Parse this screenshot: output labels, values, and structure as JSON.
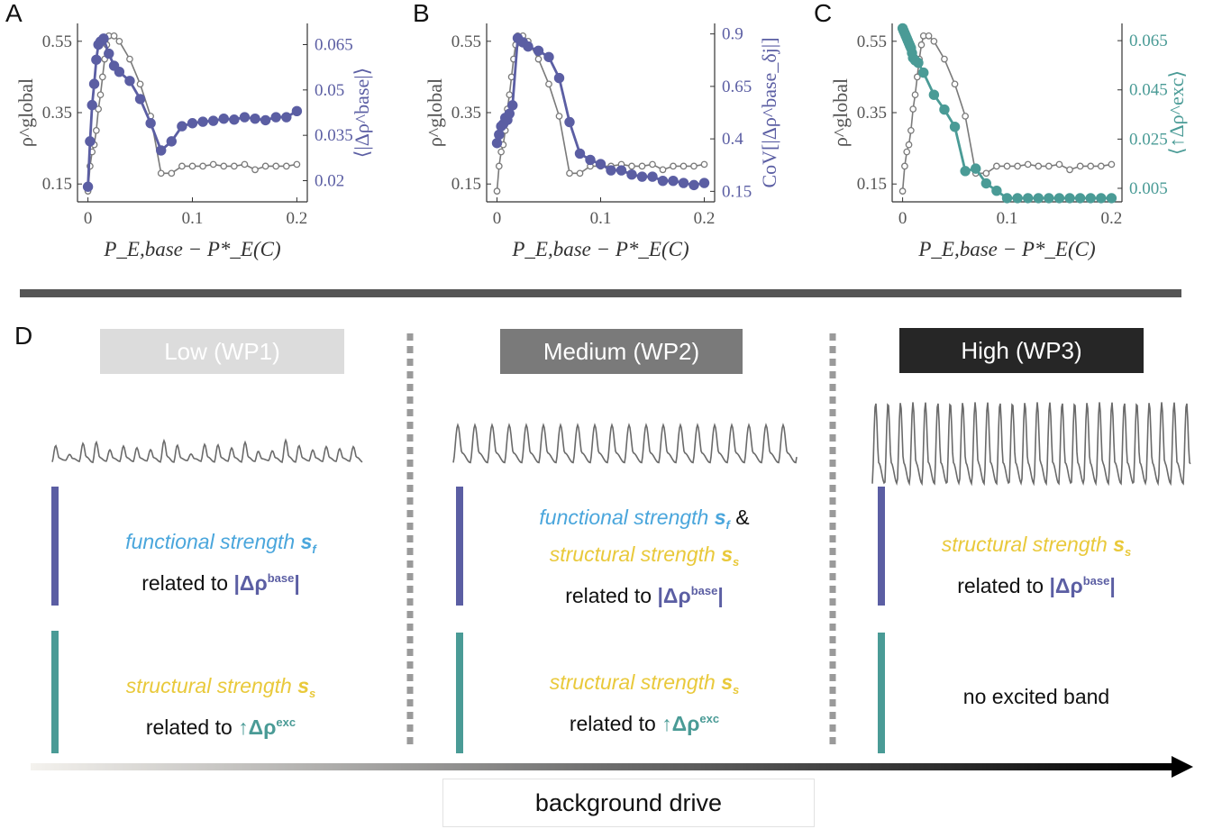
{
  "colors": {
    "gray": "#7a7a7a",
    "purple": "#5b5ea3",
    "teal": "#4a9b96",
    "blue": "#4aa6dc",
    "yellow": "#e9c93b",
    "dark": "#222222"
  },
  "panels": {
    "A": {
      "letter": "A"
    },
    "B": {
      "letter": "B"
    },
    "C": {
      "letter": "C"
    },
    "D": {
      "letter": "D"
    }
  },
  "chart_data": [
    {
      "type": "line",
      "panel": "A",
      "xlabel": "P_E,base − P*_E(C)",
      "ylabel_left": "ρ^global",
      "ylabel_right": "⟨|Δρ^base|⟩",
      "xlim": [
        -0.01,
        0.21
      ],
      "xticks": [
        "0",
        "0.1",
        "0.2"
      ],
      "ylim_left": [
        0.1,
        0.6
      ],
      "yticks_left": [
        "0.15",
        "0.35",
        "0.55"
      ],
      "ylim_right": [
        0.013,
        0.072
      ],
      "yticks_right": [
        "0.02",
        "0.035",
        "0.05",
        "0.065"
      ],
      "series": [
        {
          "axis": "left",
          "x": [
            0,
            0.002,
            0.004,
            0.006,
            0.008,
            0.01,
            0.012,
            0.014,
            0.016,
            0.018,
            0.02,
            0.025,
            0.03,
            0.04,
            0.05,
            0.06,
            0.07,
            0.08,
            0.09,
            0.1,
            0.11,
            0.12,
            0.13,
            0.14,
            0.15,
            0.16,
            0.17,
            0.18,
            0.19,
            0.2
          ],
          "values": [
            0.13,
            0.2,
            0.24,
            0.26,
            0.3,
            0.36,
            0.4,
            0.45,
            0.5,
            0.54,
            0.565,
            0.565,
            0.55,
            0.5,
            0.43,
            0.34,
            0.18,
            0.18,
            0.2,
            0.2,
            0.2,
            0.205,
            0.2,
            0.2,
            0.205,
            0.19,
            0.2,
            0.2,
            0.2,
            0.205
          ]
        },
        {
          "axis": "right",
          "x": [
            0,
            0.002,
            0.004,
            0.006,
            0.008,
            0.01,
            0.012,
            0.015,
            0.02,
            0.025,
            0.03,
            0.04,
            0.05,
            0.06,
            0.07,
            0.08,
            0.09,
            0.1,
            0.11,
            0.12,
            0.13,
            0.14,
            0.15,
            0.16,
            0.17,
            0.18,
            0.19,
            0.2
          ],
          "values": [
            0.018,
            0.033,
            0.045,
            0.052,
            0.06,
            0.065,
            0.066,
            0.067,
            0.062,
            0.058,
            0.056,
            0.053,
            0.047,
            0.039,
            0.03,
            0.033,
            0.038,
            0.039,
            0.0395,
            0.0398,
            0.0405,
            0.0402,
            0.041,
            0.0405,
            0.04,
            0.041,
            0.041,
            0.043
          ]
        }
      ]
    },
    {
      "type": "line",
      "panel": "B",
      "xlabel": "P_E,base − P*_E(C)",
      "ylabel_left": "ρ^global",
      "ylabel_right": "CoV[|Δρ^base_δj|]",
      "xlim": [
        -0.01,
        0.21
      ],
      "xticks": [
        "0",
        "0.1",
        "0.2"
      ],
      "ylim_left": [
        0.1,
        0.6
      ],
      "yticks_left": [
        "0.15",
        "0.35",
        "0.55"
      ],
      "ylim_right": [
        0.1,
        0.95
      ],
      "yticks_right": [
        "0.15",
        "0.4",
        "0.65",
        "0.9"
      ],
      "series": [
        {
          "axis": "left",
          "x": [
            0,
            0.002,
            0.004,
            0.006,
            0.008,
            0.01,
            0.012,
            0.014,
            0.016,
            0.018,
            0.02,
            0.025,
            0.03,
            0.04,
            0.05,
            0.06,
            0.07,
            0.08,
            0.09,
            0.1,
            0.11,
            0.12,
            0.13,
            0.14,
            0.15,
            0.16,
            0.17,
            0.18,
            0.19,
            0.2
          ],
          "values": [
            0.13,
            0.2,
            0.24,
            0.26,
            0.3,
            0.36,
            0.4,
            0.45,
            0.5,
            0.54,
            0.565,
            0.565,
            0.55,
            0.5,
            0.43,
            0.34,
            0.18,
            0.18,
            0.2,
            0.2,
            0.2,
            0.205,
            0.2,
            0.2,
            0.205,
            0.19,
            0.2,
            0.2,
            0.2,
            0.205
          ]
        },
        {
          "axis": "right",
          "x": [
            0,
            0.002,
            0.004,
            0.006,
            0.008,
            0.01,
            0.012,
            0.015,
            0.02,
            0.025,
            0.03,
            0.04,
            0.05,
            0.06,
            0.07,
            0.08,
            0.09,
            0.1,
            0.11,
            0.12,
            0.13,
            0.14,
            0.15,
            0.16,
            0.17,
            0.18,
            0.19,
            0.2
          ],
          "values": [
            0.38,
            0.42,
            0.46,
            0.47,
            0.5,
            0.49,
            0.52,
            0.56,
            0.88,
            0.86,
            0.84,
            0.82,
            0.79,
            0.69,
            0.48,
            0.33,
            0.3,
            0.28,
            0.25,
            0.25,
            0.23,
            0.22,
            0.22,
            0.2,
            0.2,
            0.19,
            0.18,
            0.19
          ]
        }
      ]
    },
    {
      "type": "line",
      "panel": "C",
      "xlabel": "P_E,base − P*_E(C)",
      "ylabel_left": "ρ^global",
      "ylabel_right": "⟨↑Δρ^exc⟩",
      "xlim": [
        -0.01,
        0.21
      ],
      "xticks": [
        "0",
        "0.1",
        "0.2"
      ],
      "ylim_left": [
        0.1,
        0.6
      ],
      "yticks_left": [
        "0.15",
        "0.35",
        "0.55"
      ],
      "ylim_right": [
        -0.0005,
        0.072
      ],
      "yticks_right": [
        "0.005",
        "0.025",
        "0.045",
        "0.065"
      ],
      "series": [
        {
          "axis": "left",
          "x": [
            0,
            0.002,
            0.004,
            0.006,
            0.008,
            0.01,
            0.012,
            0.014,
            0.016,
            0.018,
            0.02,
            0.025,
            0.03,
            0.04,
            0.05,
            0.06,
            0.07,
            0.08,
            0.09,
            0.1,
            0.11,
            0.12,
            0.13,
            0.14,
            0.15,
            0.16,
            0.17,
            0.18,
            0.19,
            0.2
          ],
          "values": [
            0.13,
            0.2,
            0.24,
            0.26,
            0.3,
            0.36,
            0.4,
            0.45,
            0.5,
            0.54,
            0.565,
            0.565,
            0.55,
            0.5,
            0.43,
            0.34,
            0.18,
            0.18,
            0.2,
            0.2,
            0.2,
            0.205,
            0.2,
            0.2,
            0.205,
            0.19,
            0.2,
            0.2,
            0.2,
            0.205
          ]
        },
        {
          "axis": "right",
          "x": [
            0,
            0.001,
            0.002,
            0.003,
            0.004,
            0.005,
            0.006,
            0.007,
            0.008,
            0.009,
            0.01,
            0.012,
            0.015,
            0.02,
            0.03,
            0.04,
            0.05,
            0.06,
            0.07,
            0.08,
            0.09,
            0.1,
            0.11,
            0.12,
            0.13,
            0.14,
            0.15,
            0.16,
            0.17,
            0.18,
            0.19,
            0.2
          ],
          "values": [
            0.07,
            0.069,
            0.068,
            0.067,
            0.066,
            0.065,
            0.064,
            0.063,
            0.062,
            0.06,
            0.058,
            0.057,
            0.056,
            0.052,
            0.043,
            0.037,
            0.03,
            0.012,
            0.013,
            0.007,
            0.004,
            0.001,
            0.001,
            0.001,
            0.001,
            0.001,
            0.001,
            0.001,
            0.001,
            0.001,
            0.001,
            0.001
          ]
        }
      ]
    }
  ],
  "sectionD": {
    "regimes": [
      {
        "label": "Low (WP1)",
        "bg": "#dcdcdc",
        "fg": "#ffffff"
      },
      {
        "label": "Medium (WP2)",
        "bg": "#7a7a7a",
        "fg": "#ffffff"
      },
      {
        "label": "High (WP3)",
        "bg": "#262626",
        "fg": "#ffffff"
      }
    ],
    "related_to": "related to",
    "functional_strength": "functional strength",
    "structural_strength": "structural strength",
    "amp": "&",
    "s_f": "s",
    "s_f_sub": "f",
    "s_s": "s",
    "s_s_sub": "s",
    "delta_base": "|Δρ",
    "delta_base_sup": "base",
    "delta_base_end": "|",
    "delta_exc": "↑Δρ",
    "delta_exc_sup": "exc",
    "no_band": "no excited band",
    "axis_label": "background drive"
  }
}
